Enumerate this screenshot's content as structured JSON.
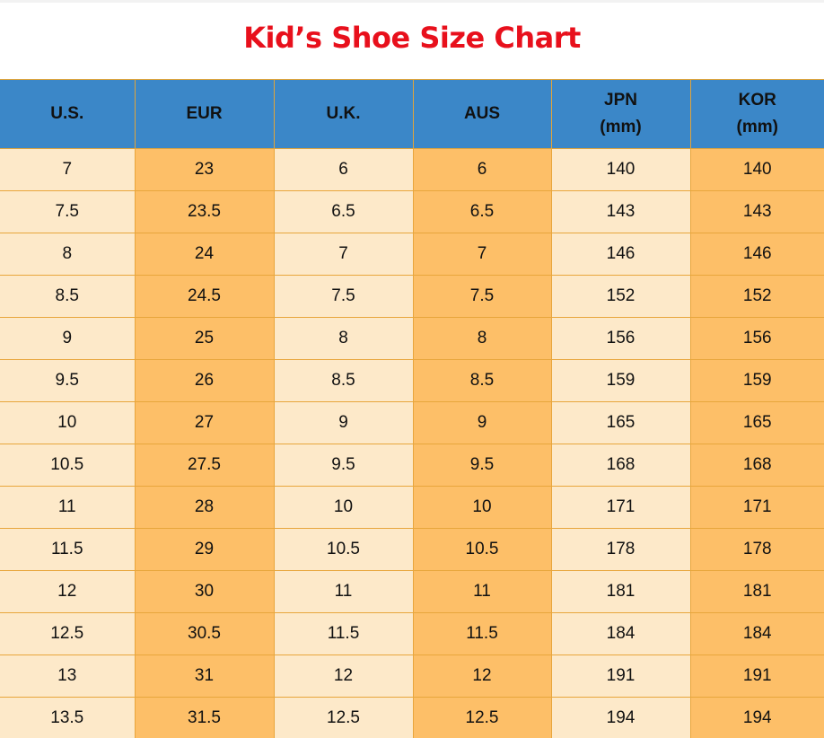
{
  "title": "Kid’s Shoe Size Chart",
  "colors": {
    "title": "#e8101c",
    "header_bg": "#3b87c8",
    "cell_light": "#fde9c9",
    "cell_dark": "#fdbf68",
    "grid": "#e8a63c"
  },
  "columns": [
    {
      "line1": "U.S.",
      "line2": ""
    },
    {
      "line1": "EUR",
      "line2": ""
    },
    {
      "line1": "U.K.",
      "line2": ""
    },
    {
      "line1": "AUS",
      "line2": ""
    },
    {
      "line1": "JPN",
      "line2": "(mm)"
    },
    {
      "line1": "KOR",
      "line2": "(mm)"
    }
  ],
  "rows": [
    [
      "7",
      "23",
      "6",
      "6",
      "140",
      "140"
    ],
    [
      "7.5",
      "23.5",
      "6.5",
      "6.5",
      "143",
      "143"
    ],
    [
      "8",
      "24",
      "7",
      "7",
      "146",
      "146"
    ],
    [
      "8.5",
      "24.5",
      "7.5",
      "7.5",
      "152",
      "152"
    ],
    [
      "9",
      "25",
      "8",
      "8",
      "156",
      "156"
    ],
    [
      "9.5",
      "26",
      "8.5",
      "8.5",
      "159",
      "159"
    ],
    [
      "10",
      "27",
      "9",
      "9",
      "165",
      "165"
    ],
    [
      "10.5",
      "27.5",
      "9.5",
      "9.5",
      "168",
      "168"
    ],
    [
      "11",
      "28",
      "10",
      "10",
      "171",
      "171"
    ],
    [
      "11.5",
      "29",
      "10.5",
      "10.5",
      "178",
      "178"
    ],
    [
      "12",
      "30",
      "11",
      "11",
      "181",
      "181"
    ],
    [
      "12.5",
      "30.5",
      "11.5",
      "11.5",
      "184",
      "184"
    ],
    [
      "13",
      "31",
      "12",
      "12",
      "191",
      "191"
    ],
    [
      "13.5",
      "31.5",
      "12.5",
      "12.5",
      "194",
      "194"
    ]
  ]
}
